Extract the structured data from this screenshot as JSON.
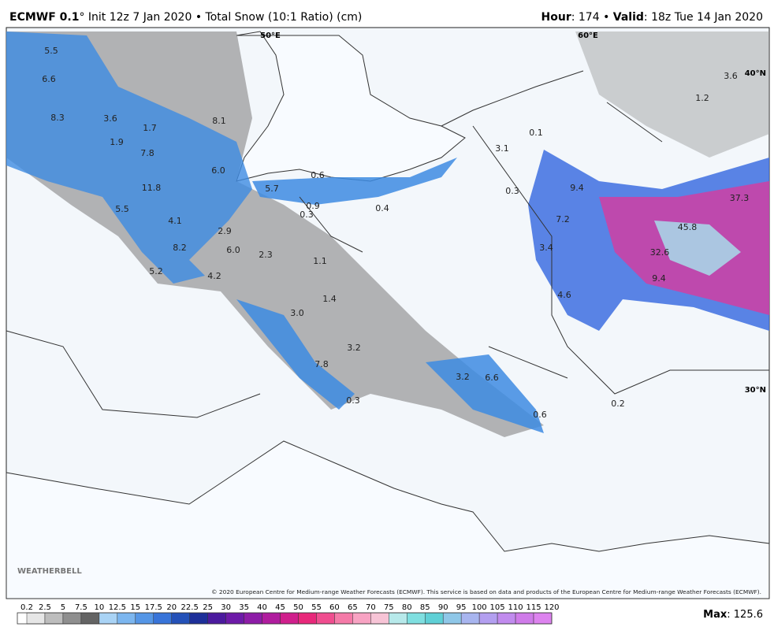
{
  "header": {
    "model": "ECMWF 0.1",
    "title": "° Init 12z 7 Jan 2020 • Total Snow (10:1 Ratio) (cm)",
    "hour_label": "Hour",
    "hour_value": ": 174 • ",
    "valid_label": "Valid",
    "valid_value": ": 18z Tue 14 Jan 2020"
  },
  "map": {
    "coordinate_labels": [
      "50°E",
      "60°E",
      "40°N",
      "30°N"
    ],
    "value_labels": [
      "5.5",
      "6.6",
      "8.3",
      "3.6",
      "1.7",
      "8.1",
      "1.9",
      "7.8",
      "6.0",
      "11.8",
      "5.7",
      "0.6",
      "0.9",
      "0.3",
      "0.4",
      "3.1",
      "0.1",
      "0.3",
      "9.4",
      "37.3",
      "5.5",
      "4.1",
      "2.9",
      "7.2",
      "45.8",
      "8.2",
      "6.0",
      "2.3",
      "1.1",
      "3.4",
      "32.6",
      "5.2",
      "4.2",
      "9.4",
      "1.4",
      "4.6",
      "3.0",
      "3.2",
      "7.8",
      "3.2",
      "6.6",
      "0.3",
      "0.6",
      "0.2",
      "3.6",
      "1.2"
    ],
    "logo": "WEATHERBELL",
    "copyright": "© 2020 European Centre for Medium-range Weather Forecasts (ECMWF). This service is based on data and products of the European Centre for Medium-range Weather Forecasts (ECMWF)."
  },
  "legend": {
    "ticks": [
      0.2,
      2.5,
      5,
      7.5,
      10,
      12.5,
      15,
      17.5,
      20,
      22.5,
      25,
      30,
      35,
      40,
      45,
      50,
      55,
      60,
      65,
      70,
      75,
      80,
      85,
      90,
      95,
      100,
      105,
      110,
      115,
      120
    ],
    "colors": [
      "#e6e6e6",
      "#bdbdbd",
      "#8f8f8f",
      "#646464",
      "#a9d3f5",
      "#7cb6ef",
      "#5596e6",
      "#3874d9",
      "#2451b8",
      "#1d2f99",
      "#4b1a9e",
      "#6d1aa8",
      "#8d1ca7",
      "#b01c9e",
      "#d01f8c",
      "#e8287a",
      "#f04d8f",
      "#f57aa8",
      "#f8a3c3",
      "#f7c4d6",
      "#b7e9ea",
      "#7fdfe0",
      "#5fd0d6",
      "#8fc7e8",
      "#a8b5ef",
      "#b39ff0",
      "#c18bee",
      "#cf7be9",
      "#dd83ef"
    ],
    "max_label": "Max",
    "max_value": 125.6
  }
}
